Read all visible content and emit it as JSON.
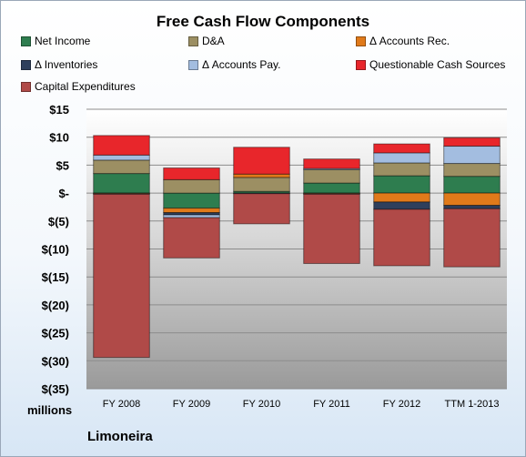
{
  "chart_data": {
    "type": "bar",
    "stacked": true,
    "title": "Free Cash Flow Components",
    "xlabel": "",
    "ylabel": "",
    "unit_label": "millions",
    "source_label": "Limoneira",
    "categories": [
      "FY 2008",
      "FY 2009",
      "FY 2010",
      "FY 2011",
      "FY 2012",
      "TTM 1-2013"
    ],
    "ylim": [
      -35,
      15
    ],
    "ytick_values": [
      15,
      10,
      5,
      0,
      -5,
      -10,
      -15,
      -20,
      -25,
      -30,
      -35
    ],
    "ytick_labels": [
      "$15",
      "$10",
      "$5",
      "$-",
      "$(5)",
      "$(10)",
      "$(15)",
      "$(20)",
      "$(25)",
      "$(30)",
      "$(35)"
    ],
    "grid": true,
    "legend_position": "top",
    "series": [
      {
        "name": "Net Income",
        "color": "#2e7d4f",
        "values": [
          3.5,
          -2.7,
          0.3,
          1.8,
          3.1,
          3.0
        ]
      },
      {
        "name": "D&A",
        "color": "#9c8f63",
        "values": [
          2.4,
          2.4,
          2.5,
          2.4,
          2.3,
          2.3
        ]
      },
      {
        "name": "Δ Accounts Rec.",
        "color": "#e07a1a",
        "values": [
          -0.1,
          -0.8,
          0.6,
          -0.1,
          -1.6,
          -2.2
        ]
      },
      {
        "name": "Δ Inventories",
        "color": "#2e3f5c",
        "values": [
          -0.1,
          -0.4,
          -0.1,
          -0.1,
          -1.3,
          -0.6
        ]
      },
      {
        "name": "Δ Accounts Pay.",
        "color": "#a3bde0",
        "values": [
          0.9,
          -0.5,
          0.0,
          0.2,
          1.8,
          3.1
        ]
      },
      {
        "name": "Questionable Cash Sources",
        "color": "#e8262b",
        "values": [
          3.5,
          2.1,
          4.8,
          1.7,
          1.6,
          1.5
        ]
      },
      {
        "name": "Capital Expenditures",
        "color": "#b04a48",
        "values": [
          -29.2,
          -7.2,
          -5.4,
          -12.4,
          -10.1,
          -10.4
        ]
      }
    ]
  }
}
